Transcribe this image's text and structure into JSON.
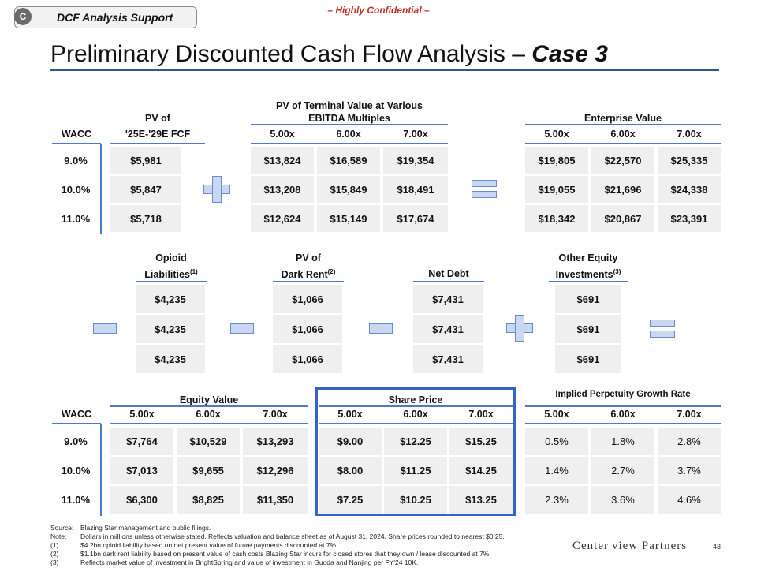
{
  "header": {
    "tab_letter": "C",
    "tab_label": "DCF Analysis Support",
    "confidential": "– Highly Confidential –",
    "title_main": "Preliminary Discounted Cash Flow Analysis – ",
    "title_case": "Case 3"
  },
  "top": {
    "wacc_header": "WACC",
    "pv_header_1": "PV of",
    "pv_header_2": "'25E-'29E FCF",
    "tv_header_1": "PV of Terminal Value at Various",
    "tv_header_2": "EBITDA Multiples",
    "ev_header": "Enterprise Value",
    "multiples": [
      "5.00x",
      "6.00x",
      "7.00x"
    ],
    "wacc": [
      "9.0%",
      "10.0%",
      "11.0%"
    ],
    "pv_fcf": [
      "$5,981",
      "$5,847",
      "$5,718"
    ],
    "tv": [
      [
        "$13,824",
        "$16,589",
        "$19,354"
      ],
      [
        "$13,208",
        "$15,849",
        "$18,491"
      ],
      [
        "$12,624",
        "$15,149",
        "$17,674"
      ]
    ],
    "ev": [
      [
        "$19,805",
        "$22,570",
        "$25,335"
      ],
      [
        "$19,055",
        "$21,696",
        "$24,338"
      ],
      [
        "$18,342",
        "$20,867",
        "$23,391"
      ]
    ]
  },
  "middle": {
    "opioid_1": "Opioid",
    "opioid_2": "Liabilities",
    "opioid_sup": "(1)",
    "dark_1": "PV of",
    "dark_2": "Dark Rent",
    "dark_sup": "(2)",
    "netdebt": "Net Debt",
    "other_1": "Other Equity",
    "other_2": "Investments",
    "other_sup": "(3)",
    "opioid_values": [
      "$4,235",
      "$4,235",
      "$4,235"
    ],
    "dark_values": [
      "$1,066",
      "$1,066",
      "$1,066"
    ],
    "netdebt_values": [
      "$7,431",
      "$7,431",
      "$7,431"
    ],
    "other_values": [
      "$691",
      "$691",
      "$691"
    ]
  },
  "bottom": {
    "wacc_header": "WACC",
    "equity_header": "Equity Value",
    "share_header": "Share Price",
    "growth_header": "Implied Perpetuity Growth Rate",
    "multiples": [
      "5.00x",
      "6.00x",
      "7.00x"
    ],
    "wacc": [
      "9.0%",
      "10.0%",
      "11.0%"
    ],
    "equity": [
      [
        "$7,764",
        "$10,529",
        "$13,293"
      ],
      [
        "$7,013",
        "$9,655",
        "$12,296"
      ],
      [
        "$6,300",
        "$8,825",
        "$11,350"
      ]
    ],
    "share": [
      [
        "$9.00",
        "$12.25",
        "$15.25"
      ],
      [
        "$8.00",
        "$11.25",
        "$14.25"
      ],
      [
        "$7.25",
        "$10.25",
        "$13.25"
      ]
    ],
    "growth": [
      [
        "0.5%",
        "1.8%",
        "2.8%"
      ],
      [
        "1.4%",
        "2.7%",
        "3.7%"
      ],
      [
        "2.3%",
        "3.6%",
        "4.6%"
      ]
    ]
  },
  "footnotes": [
    {
      "key": "Source:",
      "text": "Blazing Star management and public filings."
    },
    {
      "key": "Note:",
      "text": "Dollars in millions unless otherwise stated. Reflects valuation and balance sheet as of August 31, 2024. Share prices rounded to nearest $0.25."
    },
    {
      "key": "(1)",
      "text": "$4.2bn opioid liability based on net present value of future payments discounted at 7%."
    },
    {
      "key": "(2)",
      "text": "$1.1bn dark rent liability based on present value of cash costs Blazing Star incurs for closed stores that they own / lease discounted at 7%."
    },
    {
      "key": "(3)",
      "text": "Reflects market value of investment in BrightSpring and value of investment in Guoda and Nanjing per FY'24 10K."
    }
  ],
  "footer": {
    "logo_left": "Center",
    "logo_right": "view Partners",
    "page_number": "43"
  },
  "colors": {
    "accent_blue": "#2b5797",
    "rule_blue": "#4a7ad0",
    "share_box": "#3465c4",
    "confidential_red": "#c0312b",
    "cell_gray": "#efefef"
  },
  "icons": [
    "minus-operator-icon",
    "plus-operator-icon",
    "equals-operator-icon"
  ]
}
